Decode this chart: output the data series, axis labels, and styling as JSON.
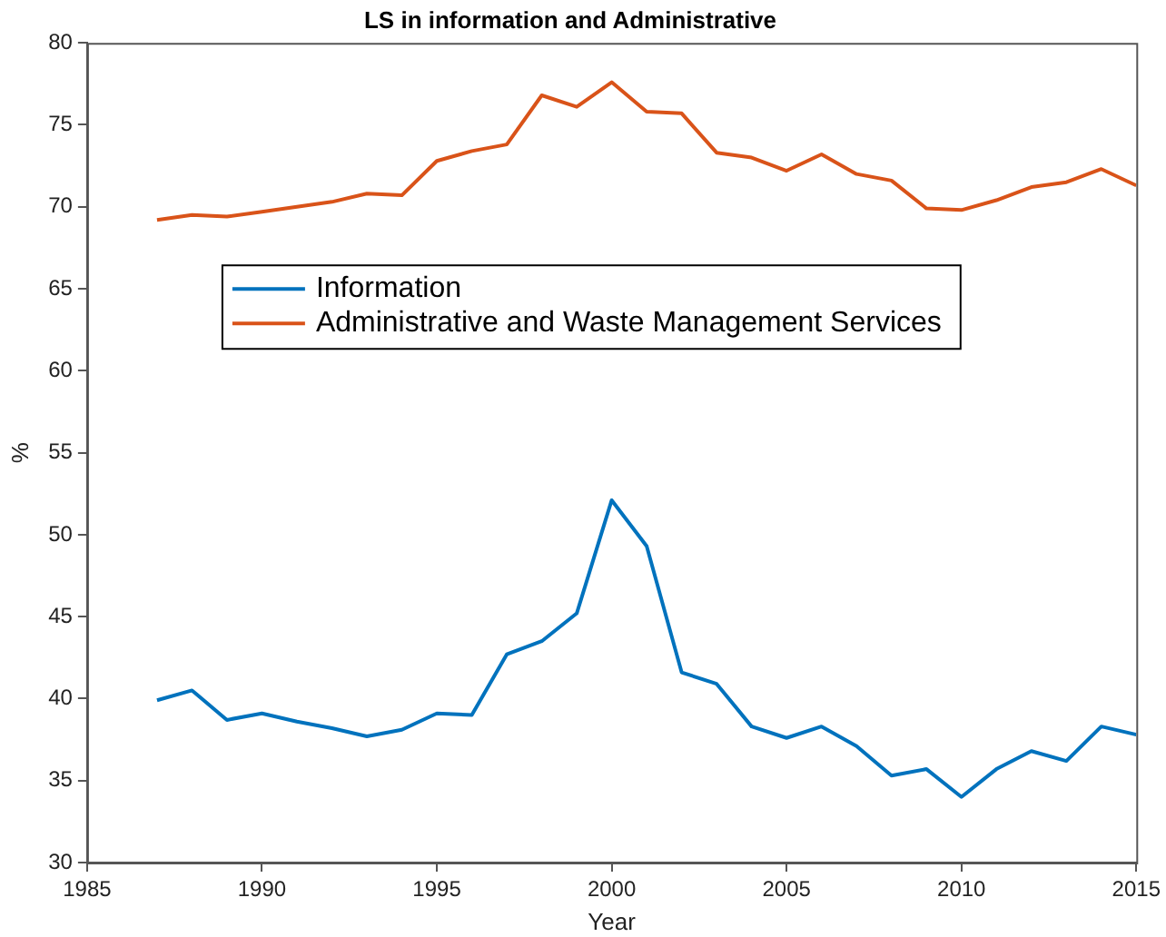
{
  "chart_data": {
    "type": "line",
    "title": "LS in information and Administrative",
    "xlabel": "Year",
    "ylabel": "%",
    "x": [
      1987,
      1988,
      1989,
      1990,
      1991,
      1992,
      1993,
      1994,
      1995,
      1996,
      1997,
      1998,
      1999,
      2000,
      2001,
      2002,
      2003,
      2004,
      2005,
      2006,
      2007,
      2008,
      2009,
      2010,
      2011,
      2012,
      2013,
      2014,
      2015
    ],
    "series": [
      {
        "name": "Information",
        "color": "#0072bd",
        "values": [
          39.9,
          40.5,
          38.7,
          39.1,
          38.6,
          38.2,
          37.7,
          38.1,
          39.1,
          39.0,
          42.7,
          43.5,
          45.2,
          52.1,
          49.3,
          41.6,
          40.9,
          38.3,
          37.6,
          38.3,
          37.1,
          35.3,
          35.7,
          34.0,
          35.7,
          36.8,
          36.2,
          38.3,
          37.8
        ]
      },
      {
        "name": "Administrative and Waste Management Services",
        "color": "#d95319",
        "values": [
          69.2,
          69.5,
          69.4,
          69.7,
          70.0,
          70.3,
          70.8,
          70.7,
          72.8,
          73.4,
          73.8,
          76.8,
          76.1,
          77.6,
          75.8,
          75.7,
          73.3,
          73.0,
          72.2,
          73.2,
          72.0,
          71.6,
          69.9,
          69.8,
          70.4,
          71.2,
          71.5,
          72.3,
          71.3
        ]
      }
    ],
    "xlim": [
      1985,
      2015
    ],
    "xticks": [
      1985,
      1990,
      1995,
      2000,
      2005,
      2010,
      2015
    ],
    "ylim": [
      30,
      80
    ],
    "yticks": [
      30,
      35,
      40,
      45,
      50,
      55,
      60,
      65,
      70,
      75,
      80
    ],
    "grid": false,
    "legend": "top left",
    "marker": "none",
    "line_style": "solid"
  }
}
